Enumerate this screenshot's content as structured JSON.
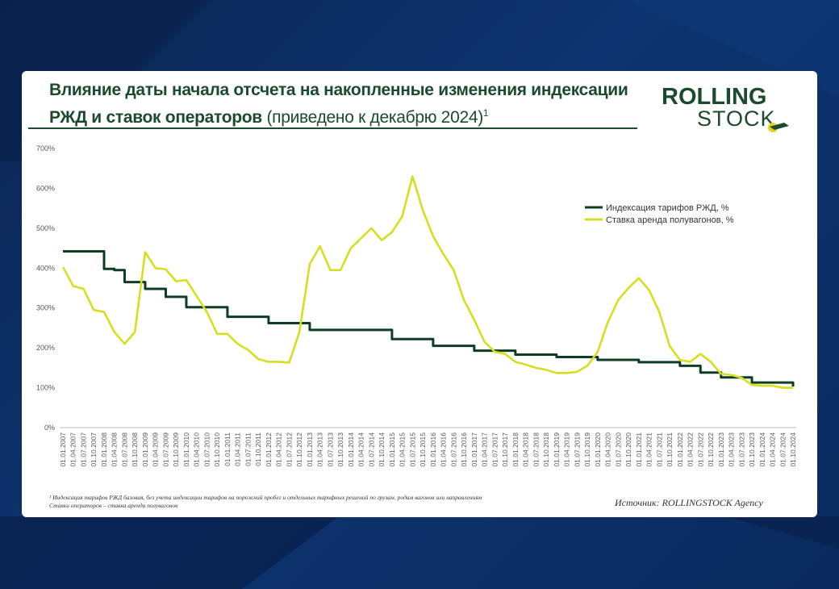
{
  "header": {
    "title_bold": "Влияние даты начала отсчета на накопленные изменения индексации РЖД и ставок операторов",
    "title_normal": "(приведено к декабрю 2024)",
    "title_sup": "1"
  },
  "logo": {
    "line1": "ROLLING",
    "line2": "STOCK"
  },
  "footnote": {
    "line1": "¹ Индексация тарифов РЖД базовая, без учета индексации тарифов на порожний пробег и отдельных тарифных решений по грузам, родам вагонов или направлениям",
    "line2": "Ставки операторов – ставка аренда полувагонов"
  },
  "source": "Источник: ROLLINGSTOCK Agency",
  "colors": {
    "green": "#0e3d24",
    "yellow": "#d6df1f",
    "title": "#1c4a2c"
  },
  "chart_data": {
    "type": "line",
    "title": "Влияние даты начала отсчета на накопленные изменения индексации РЖД и ставок операторов (приведено к декабрю 2024)",
    "ylim": [
      0,
      700
    ],
    "yticks": [
      0,
      100,
      200,
      300,
      400,
      500,
      600,
      700
    ],
    "ytick_labels": [
      "0%",
      "100%",
      "200%",
      "300%",
      "400%",
      "500%",
      "600%",
      "700%"
    ],
    "legend_position": "right",
    "x": [
      "01.01.2007",
      "01.04.2007",
      "01.07.2007",
      "01.10.2007",
      "01.01.2008",
      "01.04.2008",
      "01.07.2008",
      "01.10.2008",
      "01.01.2009",
      "01.04.2009",
      "01.07.2009",
      "01.10.2009",
      "01.01.2010",
      "01.04.2010",
      "01.07.2010",
      "01.10.2010",
      "01.01.2011",
      "01.04.2011",
      "01.07.2011",
      "01.10.2011",
      "01.01.2012",
      "01.04.2012",
      "01.07.2012",
      "01.10.2012",
      "01.01.2013",
      "01.04.2013",
      "01.07.2013",
      "01.10.2013",
      "01.01.2014",
      "01.04.2014",
      "01.07.2014",
      "01.10.2014",
      "01.01.2015",
      "01.04.2015",
      "01.07.2015",
      "01.10.2015",
      "01.01.2016",
      "01.04.2016",
      "01.07.2016",
      "01.10.2016",
      "01.01.2017",
      "01.04.2017",
      "01.07.2017",
      "01.10.2017",
      "01.01.2018",
      "01.04.2018",
      "01.07.2018",
      "01.10.2018",
      "01.01.2019",
      "01.04.2019",
      "01.07.2019",
      "01.10.2019",
      "01.01.2020",
      "01.04.2020",
      "01.07.2020",
      "01.10.2020",
      "01.01.2021",
      "01.04.2021",
      "01.07.2021",
      "01.10.2021",
      "01.01.2022",
      "01.04.2022",
      "01.07.2022",
      "01.10.2022",
      "01.01.2023",
      "01.04.2023",
      "01.07.2023",
      "01.10.2023",
      "01.01.2024",
      "01.04.2024",
      "01.07.2024",
      "01.10.2024"
    ],
    "series": [
      {
        "name": "Индексация тарифов РЖД, %",
        "color": "#0e3d24",
        "step": true,
        "values": [
          442,
          442,
          442,
          442,
          398,
          395,
          365,
          365,
          348,
          348,
          328,
          328,
          302,
          302,
          302,
          302,
          278,
          278,
          278,
          278,
          262,
          262,
          262,
          262,
          245,
          245,
          245,
          245,
          245,
          245,
          245,
          245,
          222,
          222,
          222,
          222,
          205,
          205,
          205,
          205,
          193,
          193,
          193,
          193,
          183,
          183,
          183,
          183,
          177,
          177,
          177,
          177,
          170,
          170,
          170,
          170,
          164,
          164,
          164,
          164,
          155,
          155,
          138,
          138,
          126,
          126,
          126,
          113,
          113,
          113,
          113,
          103
        ]
      },
      {
        "name": "Ставка аренда полувагонов, %",
        "color": "#d6df1f",
        "step": false,
        "values": [
          403,
          355,
          348,
          295,
          290,
          240,
          210,
          240,
          440,
          400,
          397,
          367,
          370,
          330,
          290,
          235,
          235,
          210,
          195,
          172,
          165,
          165,
          163,
          240,
          410,
          455,
          395,
          395,
          450,
          475,
          500,
          470,
          490,
          530,
          630,
          545,
          480,
          435,
          395,
          320,
          270,
          215,
          190,
          185,
          165,
          158,
          150,
          145,
          137,
          137,
          140,
          155,
          190,
          265,
          320,
          350,
          375,
          345,
          290,
          205,
          170,
          165,
          185,
          165,
          135,
          132,
          125,
          107,
          105,
          105,
          100,
          100
        ]
      }
    ]
  }
}
